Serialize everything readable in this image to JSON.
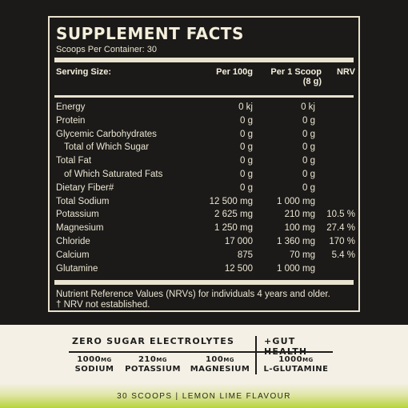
{
  "facts": {
    "title": "SUPPLEMENT FACTS",
    "scoops_per_container": "Scoops Per Container: 30",
    "headers": {
      "serving_size": "Serving Size:",
      "per_100g": "Per 100g",
      "per_scoop_line1": "Per 1 Scoop",
      "per_scoop_line2": "(8 g)",
      "nrv": "NRV"
    },
    "rows": [
      {
        "label": "Energy",
        "per100": "0 kj",
        "perScoop": "0 kj",
        "nrv": ""
      },
      {
        "label": "Protein",
        "per100": "0 g",
        "perScoop": "0 g",
        "nrv": ""
      },
      {
        "label": "Glycemic Carbohydrates",
        "per100": "0 g",
        "perScoop": "0 g",
        "nrv": ""
      },
      {
        "label": "Total of Which Sugar",
        "per100": "0 g",
        "perScoop": "0 g",
        "nrv": ""
      },
      {
        "label": "Total Fat",
        "per100": "0 g",
        "perScoop": "0 g",
        "nrv": ""
      },
      {
        "label": "of Which Saturated Fats",
        "per100": "0 g",
        "perScoop": "0 g",
        "nrv": ""
      },
      {
        "label": "Dietary Fiber#",
        "per100": "0 g",
        "perScoop": "0 g",
        "nrv": ""
      },
      {
        "label": "Total Sodium",
        "per100": "12 500 mg",
        "perScoop": "1 000 mg",
        "nrv": ""
      },
      {
        "label": "Potassium",
        "per100": "2 625 mg",
        "perScoop": "210 mg",
        "nrv": "10.5 %"
      },
      {
        "label": "Magnesium",
        "per100": "1 250 mg",
        "perScoop": "100 mg",
        "nrv": "27.4 %"
      },
      {
        "label": "Chloride",
        "per100": "17 000",
        "perScoop": "1 360 mg",
        "nrv": "170 %"
      },
      {
        "label": "Calcium",
        "per100": "875",
        "perScoop": "70 mg",
        "nrv": "5.4 %"
      },
      {
        "label": "Glutamine",
        "per100": "12 500",
        "perScoop": "1 000 mg",
        "nrv": ""
      }
    ],
    "footnote_line1": "Nutrient Reference Values (NRVs) for individuals 4 years and older.",
    "footnote_line2": "† NRV not established."
  },
  "highlights": {
    "left_heading": "ZERO SUGAR ELECTROLYTES",
    "right_heading": "+GUT HEALTH",
    "items": [
      {
        "amount": "1000",
        "unit": "MG",
        "name": "SODIUM"
      },
      {
        "amount": "210",
        "unit": "MG",
        "name": "POTASSIUM"
      },
      {
        "amount": "100",
        "unit": "MG",
        "name": "MAGNESIUM"
      },
      {
        "amount": "1000",
        "unit": "MG",
        "name": "L-GLUTAMINE"
      }
    ]
  },
  "flavour_bar": "30 SCOOPS  |  LEMON LIME FLAVOUR"
}
